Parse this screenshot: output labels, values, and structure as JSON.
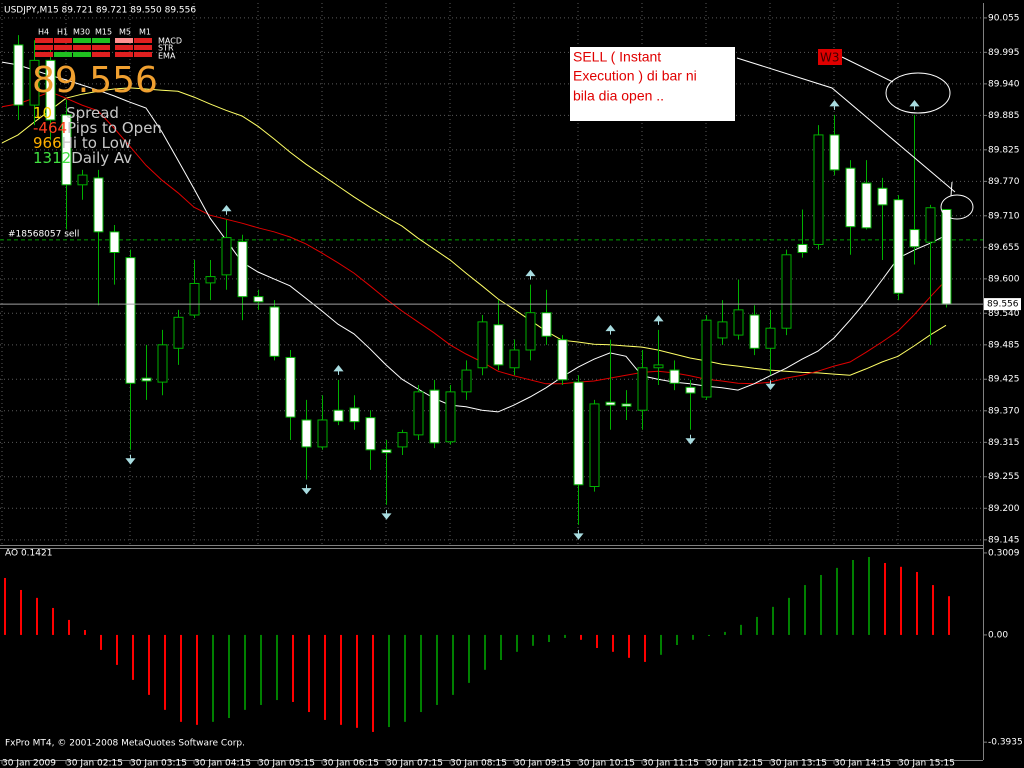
{
  "chart_data": [
    {
      "type": "candlestick",
      "title": "USDJPY,M15  89.721 89.721 89.550 89.556",
      "categories": [
        "30 Jan 2009",
        null,
        null,
        null,
        "30 Jan 02:15",
        null,
        null,
        null,
        "30 Jan 03:15",
        null,
        null,
        null,
        "30 Jan 04:15",
        null,
        null,
        null,
        "30 Jan 05:15",
        null,
        null,
        null,
        "30 Jan 06:15",
        null,
        null,
        null,
        "30 Jan 07:15",
        null,
        null,
        null,
        "30 Jan 08:15",
        null,
        null,
        null,
        "30 Jan 09:15",
        null,
        null,
        null,
        "30 Jan 10:15",
        null,
        null,
        null,
        "30 Jan 11:15",
        null,
        null,
        null,
        "30 Jan 12:15",
        null,
        null,
        null,
        "30 Jan 13:15",
        null,
        null,
        null,
        "30 Jan 14:15",
        null,
        null,
        null,
        "30 Jan 15:15",
        null,
        null,
        null
      ],
      "open": [
        null,
        90.008,
        89.903,
        89.981,
        89.886,
        89.764,
        89.776,
        89.682,
        89.637,
        89.427,
        89.42,
        89.479,
        89.537,
        89.593,
        89.607,
        89.665,
        89.569,
        89.551,
        89.463,
        89.354,
        89.307,
        89.371,
        89.375,
        89.358,
        89.302,
        89.307,
        89.328,
        89.406,
        89.316,
        89.403,
        89.445,
        89.52,
        89.445,
        89.476,
        89.541,
        89.494,
        89.42,
        89.238,
        89.385,
        89.382,
        89.371,
        89.445,
        89.441,
        89.411,
        89.394,
        89.497,
        89.502,
        89.537,
        89.479,
        89.514,
        89.66,
        89.66,
        89.851,
        89.793,
        89.767,
        89.758,
        89.738,
        89.686,
        89.664,
        89.721
      ],
      "high": [
        null,
        90.025,
        90.016,
        89.999,
        89.912,
        89.79,
        89.79,
        89.694,
        89.651,
        89.485,
        89.511,
        89.546,
        89.633,
        89.633,
        89.703,
        89.677,
        89.581,
        89.563,
        89.476,
        89.389,
        89.397,
        89.424,
        89.397,
        89.371,
        89.319,
        89.337,
        89.415,
        89.424,
        89.415,
        89.458,
        89.537,
        89.563,
        89.494,
        89.59,
        89.581,
        89.502,
        89.432,
        89.389,
        89.494,
        89.406,
        89.476,
        89.511,
        89.458,
        89.424,
        89.537,
        89.563,
        89.599,
        89.554,
        89.546,
        89.651,
        89.721,
        89.868,
        89.886,
        89.807,
        89.807,
        89.776,
        89.746,
        89.886,
        89.729,
        89.721
      ],
      "low": [
        null,
        89.877,
        89.868,
        89.842,
        89.686,
        89.738,
        89.554,
        89.59,
        89.302,
        89.389,
        89.397,
        89.45,
        89.532,
        89.563,
        89.581,
        89.528,
        89.546,
        89.458,
        89.319,
        89.25,
        89.302,
        89.345,
        89.337,
        89.267,
        89.206,
        89.293,
        89.319,
        89.305,
        89.311,
        89.389,
        89.432,
        89.441,
        89.432,
        89.458,
        89.485,
        89.415,
        89.171,
        89.229,
        89.337,
        89.354,
        89.337,
        89.415,
        89.406,
        89.337,
        89.389,
        89.485,
        89.494,
        89.467,
        89.432,
        89.502,
        89.637,
        89.651,
        89.781,
        89.642,
        89.686,
        89.633,
        89.563,
        89.625,
        89.485,
        89.55
      ],
      "close": [
        null,
        89.903,
        89.981,
        89.877,
        89.764,
        89.781,
        89.682,
        89.646,
        89.418,
        89.422,
        89.485,
        89.533,
        89.592,
        89.604,
        89.672,
        89.569,
        89.56,
        89.465,
        89.359,
        89.307,
        89.354,
        89.352,
        89.351,
        89.302,
        89.297,
        89.332,
        89.403,
        89.314,
        89.403,
        89.441,
        89.525,
        89.45,
        89.476,
        89.541,
        89.5,
        89.424,
        89.241,
        89.382,
        89.38,
        89.378,
        89.445,
        89.45,
        89.418,
        89.401,
        89.528,
        89.525,
        89.546,
        89.479,
        89.514,
        89.642,
        89.646,
        89.851,
        89.79,
        89.691,
        89.689,
        89.729,
        89.575,
        89.656,
        89.724,
        89.556
      ],
      "up_color": "#000000",
      "down_color": "#ffffff",
      "line_color": "#00b000",
      "lines": [
        {
          "color": "#ffff66",
          "values": [
            89.837,
            89.851,
            89.873,
            89.894,
            89.915,
            89.922,
            89.927,
            89.931,
            89.933,
            89.931,
            89.929,
            89.927,
            89.917,
            89.905,
            89.894,
            89.884,
            89.866,
            89.844,
            89.821,
            89.8,
            89.781,
            89.762,
            89.743,
            89.725,
            89.708,
            89.692,
            89.671,
            89.652,
            89.633,
            89.61,
            89.588,
            89.565,
            89.547,
            89.528,
            89.509,
            89.493,
            89.49,
            89.486,
            89.485,
            89.483,
            89.481,
            89.476,
            89.469,
            89.462,
            89.457,
            89.451,
            89.448,
            89.444,
            89.441,
            89.439,
            89.437,
            89.436,
            89.434,
            89.432,
            89.443,
            89.455,
            89.465,
            89.483,
            89.502,
            89.519
          ]
        },
        {
          "color": "#e00000",
          "values": [
            89.9,
            89.905,
            89.915,
            89.926,
            89.915,
            89.903,
            89.893,
            89.863,
            89.831,
            89.798,
            89.772,
            89.75,
            89.725,
            89.711,
            89.704,
            89.697,
            89.689,
            89.682,
            89.673,
            89.661,
            89.645,
            89.628,
            89.61,
            89.588,
            89.565,
            89.544,
            89.525,
            89.506,
            89.485,
            89.469,
            89.455,
            89.439,
            89.431,
            89.424,
            89.417,
            89.417,
            89.42,
            89.422,
            89.427,
            89.432,
            89.437,
            89.439,
            89.436,
            89.431,
            89.425,
            89.422,
            89.418,
            89.417,
            89.42,
            89.427,
            89.432,
            89.439,
            89.448,
            89.455,
            89.472,
            89.49,
            89.509,
            89.537,
            89.568,
            89.598
          ]
        },
        {
          "color": "#ffffff",
          "values": [
            89.978,
            89.973,
            89.964,
            89.955,
            89.947,
            89.938,
            89.929,
            89.919,
            89.908,
            89.898,
            89.856,
            89.807,
            89.757,
            89.706,
            89.668,
            89.629,
            89.612,
            89.6,
            89.588,
            89.566,
            89.544,
            89.521,
            89.504,
            89.478,
            89.45,
            89.425,
            89.408,
            89.392,
            89.38,
            89.377,
            89.371,
            89.368,
            89.38,
            89.394,
            89.41,
            89.429,
            89.446,
            89.46,
            89.471,
            89.465,
            89.431,
            89.425,
            89.42,
            89.417,
            89.413,
            89.41,
            89.406,
            89.417,
            89.431,
            89.444,
            89.46,
            89.474,
            89.497,
            89.528,
            89.561,
            89.598,
            89.636,
            89.65,
            89.662,
            89.676
          ]
        }
      ],
      "fractal_color": "#a8dce0",
      "fractals_up": [
        null,
        null,
        null,
        null,
        null,
        null,
        null,
        null,
        null,
        null,
        null,
        null,
        null,
        null,
        89.703,
        null,
        null,
        null,
        null,
        null,
        null,
        89.424,
        null,
        null,
        null,
        null,
        null,
        null,
        null,
        null,
        null,
        null,
        null,
        89.59,
        null,
        null,
        null,
        null,
        89.494,
        null,
        null,
        89.511,
        null,
        null,
        null,
        null,
        null,
        null,
        null,
        null,
        null,
        null,
        89.886,
        null,
        null,
        null,
        null,
        89.886,
        null,
        null
      ],
      "fractals_down": [
        null,
        null,
        null,
        null,
        null,
        null,
        null,
        null,
        89.302,
        null,
        null,
        null,
        null,
        null,
        null,
        null,
        null,
        null,
        null,
        89.25,
        null,
        null,
        null,
        null,
        89.206,
        null,
        null,
        null,
        null,
        null,
        null,
        null,
        null,
        null,
        null,
        null,
        89.171,
        null,
        null,
        null,
        null,
        null,
        null,
        89.337,
        null,
        null,
        null,
        null,
        89.432,
        null,
        null,
        null,
        null,
        null,
        null,
        null,
        null,
        null,
        null,
        null
      ],
      "current_price": 89.556,
      "order": {
        "label": "#18568057 sell",
        "price": 89.668,
        "color": "#00a000"
      },
      "ylim": [
        89.136,
        90.081
      ],
      "yticks": [
        90.055,
        89.995,
        {
          "value": 89.94,
          "label": "89.940"
        },
        89.885,
        89.825,
        {
          "value": 89.77,
          "label": "89.770"
        },
        {
          "value": 89.71,
          "label": "89.710"
        },
        89.655,
        {
          "value": 89.6,
          "label": "89.600"
        },
        {
          "value": 89.54,
          "label": "89.540"
        },
        89.485,
        89.425,
        {
          "value": 89.37,
          "label": "89.370"
        },
        89.315,
        89.255,
        {
          "value": 89.2,
          "label": "89.200"
        },
        89.145
      ],
      "grid": true
    },
    {
      "type": "histogram",
      "title": "AO 0.1421",
      "values": [
        0.209,
        0.165,
        0.136,
        0.099,
        0.055,
        0.018,
        -0.055,
        -0.11,
        -0.165,
        -0.22,
        -0.275,
        -0.319,
        -0.33,
        -0.319,
        -0.305,
        -0.275,
        -0.257,
        -0.239,
        -0.246,
        -0.283,
        -0.312,
        -0.33,
        -0.341,
        -0.356,
        -0.338,
        -0.319,
        -0.283,
        -0.257,
        -0.22,
        -0.176,
        -0.128,
        -0.092,
        -0.062,
        -0.04,
        -0.026,
        -0.011,
        -0.018,
        -0.048,
        -0.062,
        -0.084,
        -0.099,
        -0.073,
        -0.037,
        -0.018,
        -0.004,
        0.011,
        0.037,
        0.066,
        0.103,
        0.136,
        0.183,
        0.22,
        0.246,
        0.275,
        0.286,
        0.264,
        0.25,
        0.231,
        0.183,
        0.1421
      ],
      "up_color": "#008000",
      "down_color": "#ff0000",
      "ylim": [
        -0.459,
        0.319
      ],
      "yticks": [
        0.3009,
        {
          "value": 0,
          "label": "0.00"
        },
        -0.3935
      ],
      "grid": false
    }
  ],
  "info": {
    "timeframes": [
      "H4",
      "H1",
      "M30",
      "M15",
      "M5",
      "M1"
    ],
    "indicators": [
      "MACD",
      "STR",
      "EMA"
    ],
    "stats": [
      {
        "value": 10,
        "label": "Spread",
        "color": "#ffd700"
      },
      {
        "value": -464,
        "label": "Pips to Open",
        "color": "#ff4020"
      },
      {
        "value": 966,
        "label": "Hi to Low",
        "color": "#ffb000"
      },
      {
        "value": 1312,
        "label": "Daily Av",
        "color": "#40e040"
      }
    ]
  },
  "annotations": {
    "note_lines": [
      "SELL ( Instant",
      "Execution ) di bar ni",
      "bila dia open .."
    ],
    "wave": "W3"
  },
  "footer": "FxPro MT4, © 2001-2008 MetaQuotes Software Corp."
}
